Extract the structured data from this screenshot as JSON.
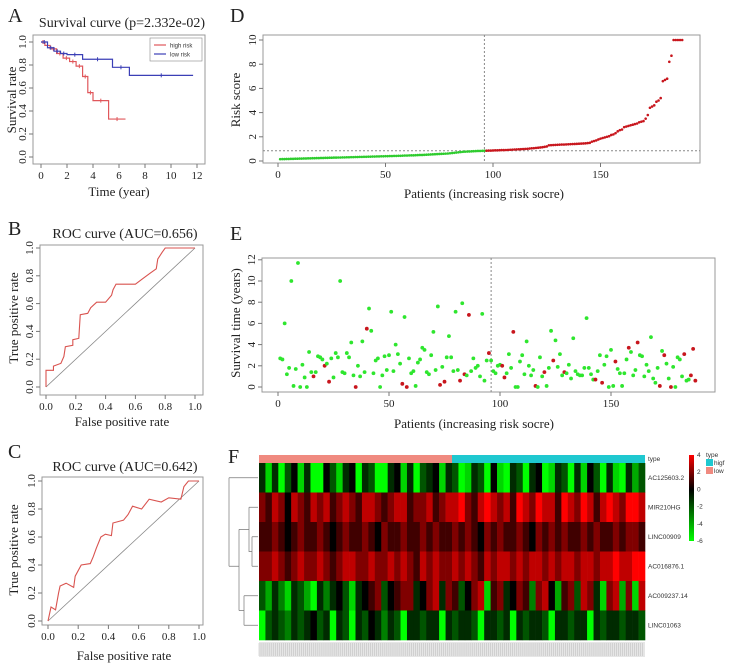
{
  "figure": {
    "labels": [
      "A",
      "B",
      "C",
      "D",
      "E",
      "F"
    ]
  },
  "chart_data": [
    {
      "id": "A",
      "type": "line",
      "title": "Survival curve (p=2.332e-02)",
      "xlabel": "Time (year)",
      "ylabel": "Survival rate",
      "xlim": [
        0,
        12
      ],
      "ylim": [
        0,
        1
      ],
      "xticks": [
        0,
        2,
        4,
        6,
        8,
        10,
        12
      ],
      "yticks": [
        0.0,
        0.2,
        0.4,
        0.6,
        0.8,
        1.0
      ],
      "legend_position": "top-right",
      "series": [
        {
          "name": "high risk",
          "color": "#e0575b",
          "x": [
            0,
            0.3,
            0.7,
            1.2,
            1.7,
            2.2,
            2.7,
            3.2,
            3.6,
            4.0,
            5.2,
            6.5
          ],
          "y": [
            1,
            0.97,
            0.94,
            0.9,
            0.86,
            0.83,
            0.79,
            0.7,
            0.56,
            0.49,
            0.33,
            0.33
          ]
        },
        {
          "name": "low risk",
          "color": "#3b3fb6",
          "x": [
            0,
            0.5,
            1.0,
            1.5,
            2.0,
            3.2,
            5.5,
            6.8,
            11.7
          ],
          "y": [
            1,
            0.95,
            0.92,
            0.9,
            0.89,
            0.85,
            0.78,
            0.71,
            0.71
          ]
        }
      ]
    },
    {
      "id": "B",
      "type": "line",
      "title": "ROC curve (AUC=0.656)",
      "xlabel": "False positive rate",
      "ylabel": "True positive rate",
      "xlim": [
        0,
        1
      ],
      "ylim": [
        0,
        1
      ],
      "xticks": [
        0.0,
        0.2,
        0.4,
        0.6,
        0.8,
        1.0
      ],
      "yticks": [
        0.0,
        0.2,
        0.4,
        0.6,
        0.8,
        1.0
      ],
      "color": "#d9534f",
      "fpr": [
        0,
        0,
        0.05,
        0.05,
        0.1,
        0.12,
        0.13,
        0.18,
        0.18,
        0.22,
        0.23,
        0.28,
        0.3,
        0.34,
        0.4,
        0.44,
        0.45,
        0.47,
        0.6,
        0.65,
        0.7,
        0.74,
        0.75,
        0.78,
        0.8,
        1
      ],
      "tpr": [
        0,
        0.12,
        0.12,
        0.15,
        0.17,
        0.22,
        0.29,
        0.3,
        0.34,
        0.35,
        0.52,
        0.53,
        0.57,
        0.61,
        0.61,
        0.66,
        0.7,
        0.74,
        0.74,
        0.78,
        0.82,
        0.85,
        0.92,
        0.97,
        1.0,
        1.0
      ]
    },
    {
      "id": "C",
      "type": "line",
      "title": "ROC curve (AUC=0.642)",
      "xlabel": "False positive rate",
      "ylabel": "True positive rate",
      "xlim": [
        0,
        1
      ],
      "ylim": [
        0,
        1
      ],
      "xticks": [
        0.0,
        0.2,
        0.4,
        0.6,
        0.8,
        1.0
      ],
      "yticks": [
        0.0,
        0.2,
        0.4,
        0.6,
        0.8,
        1.0
      ],
      "color": "#d9534f",
      "fpr": [
        0,
        0.02,
        0.05,
        0.07,
        0.08,
        0.12,
        0.17,
        0.18,
        0.22,
        0.28,
        0.3,
        0.32,
        0.35,
        0.38,
        0.42,
        0.43,
        0.5,
        0.53,
        0.56,
        0.62,
        0.67,
        0.75,
        0.8,
        0.88,
        0.9,
        0.93,
        1
      ],
      "tpr": [
        0,
        0.1,
        0.08,
        0.2,
        0.25,
        0.27,
        0.24,
        0.32,
        0.4,
        0.41,
        0.46,
        0.52,
        0.6,
        0.62,
        0.61,
        0.7,
        0.72,
        0.76,
        0.82,
        0.8,
        0.87,
        0.85,
        0.88,
        0.87,
        0.96,
        1.0,
        1.0
      ]
    },
    {
      "id": "D",
      "type": "scatter",
      "xlabel": "Patients (increasing risk socre)",
      "ylabel": "Risk score",
      "xlim": [
        0,
        190
      ],
      "ylim": [
        0,
        10
      ],
      "xticks": [
        0,
        50,
        100,
        150
      ],
      "yticks": [
        0,
        2,
        4,
        6,
        8,
        10
      ],
      "cutoff_patient": 96,
      "cutoff_score": 0.85,
      "colors": {
        "low": "#2ecc2e",
        "high": "#c8161d"
      },
      "low_risk_scores": [
        0.15,
        0.16,
        0.16,
        0.17,
        0.17,
        0.18,
        0.18,
        0.19,
        0.19,
        0.2,
        0.2,
        0.21,
        0.21,
        0.22,
        0.22,
        0.23,
        0.23,
        0.24,
        0.24,
        0.25,
        0.25,
        0.26,
        0.26,
        0.27,
        0.27,
        0.28,
        0.28,
        0.29,
        0.29,
        0.3,
        0.3,
        0.31,
        0.31,
        0.32,
        0.32,
        0.33,
        0.33,
        0.34,
        0.34,
        0.35,
        0.35,
        0.36,
        0.36,
        0.37,
        0.37,
        0.38,
        0.38,
        0.39,
        0.39,
        0.4,
        0.4,
        0.41,
        0.41,
        0.42,
        0.42,
        0.43,
        0.43,
        0.44,
        0.45,
        0.45,
        0.46,
        0.47,
        0.47,
        0.48,
        0.49,
        0.5,
        0.5,
        0.51,
        0.52,
        0.53,
        0.54,
        0.55,
        0.56,
        0.57,
        0.58,
        0.59,
        0.6,
        0.61,
        0.62,
        0.64,
        0.66,
        0.68,
        0.7,
        0.72,
        0.74,
        0.76,
        0.77,
        0.78,
        0.79,
        0.8,
        0.81,
        0.82,
        0.83,
        0.83,
        0.84,
        0.85
      ],
      "high_risk_scores": [
        0.85,
        0.86,
        0.86,
        0.87,
        0.88,
        0.88,
        0.89,
        0.9,
        0.9,
        0.91,
        0.92,
        0.93,
        0.94,
        0.95,
        0.96,
        0.97,
        0.98,
        0.99,
        1.0,
        1.01,
        1.03,
        1.05,
        1.06,
        1.08,
        1.1,
        1.12,
        1.14,
        1.17,
        1.2,
        1.3,
        1.31,
        1.32,
        1.33,
        1.34,
        1.35,
        1.36,
        1.36,
        1.37,
        1.38,
        1.39,
        1.4,
        1.41,
        1.42,
        1.43,
        1.44,
        1.45,
        1.46,
        1.48,
        1.5,
        1.6,
        1.65,
        1.7,
        1.78,
        1.85,
        1.9,
        1.95,
        2.0,
        2.05,
        2.15,
        2.2,
        2.3,
        2.45,
        2.55,
        2.6,
        2.8,
        2.85,
        2.9,
        2.95,
        3.0,
        3.05,
        3.1,
        3.2,
        3.25,
        3.3,
        3.5,
        3.8,
        4.4,
        4.5,
        4.6,
        4.9,
        5.0,
        5.2,
        6.6,
        6.7,
        6.8,
        8.2,
        8.7,
        10,
        10,
        10,
        10,
        10
      ]
    },
    {
      "id": "E",
      "type": "scatter",
      "xlabel": "Patients (increasing risk socre)",
      "ylabel": "Survival time (years)",
      "xlim": [
        0,
        190
      ],
      "ylim": [
        0,
        12
      ],
      "xticks": [
        0,
        50,
        100,
        150
      ],
      "yticks": [
        0,
        2,
        4,
        6,
        8,
        10,
        12
      ],
      "cutoff_patient": 96,
      "colors": {
        "alive": "#2ee62e",
        "dead": "#c8161d"
      },
      "survival_time": [
        2.7,
        2.6,
        6.0,
        1.2,
        1.8,
        10.0,
        0.1,
        1.7,
        11.7,
        0,
        2.1,
        0.9,
        0,
        3.3,
        1.4,
        1.0,
        1.4,
        2.9,
        2.8,
        2.6,
        2.0,
        2.2,
        0.5,
        2.7,
        0.9,
        3.2,
        2.8,
        10.0,
        1.4,
        1.3,
        3.2,
        2.8,
        4.2,
        1.1,
        0,
        2.0,
        1.0,
        4.3,
        1.4,
        5.5,
        7.4,
        5.3,
        1.3,
        2.5,
        2.7,
        0,
        1.1,
        2.9,
        1.6,
        3.0,
        7.1,
        1.5,
        4.0,
        3.1,
        2.2,
        0.3,
        6.6,
        0,
        2.7,
        1.3,
        1.5,
        0.1,
        2.3,
        2.6,
        3.7,
        3.5,
        1.4,
        1.2,
        3.0,
        5.2,
        1.6,
        7.6,
        0.2,
        1.9,
        0.5,
        2.8,
        4.8,
        2.8,
        1.5,
        7.1,
        1.6,
        0.6,
        7.9,
        1.2,
        1.1,
        6.8,
        1.5,
        2.7,
        1.8,
        2.0,
        1.0,
        6.9,
        0.6,
        2.5,
        3.2,
        2.5,
        1.5,
        1.3,
        2.0,
        2.1,
        2.0,
        0.9,
        1.3,
        3.1,
        1.8,
        5.2,
        0,
        0,
        2.4,
        3.0,
        1.2,
        4.3,
        2.0,
        1.1,
        1.6,
        0.1,
        0,
        2.8,
        1.0,
        1.4,
        0.1,
        1.8,
        5.3,
        2.5,
        4.4,
        1.9,
        3.1,
        1.1,
        1.4,
        1.3,
        2.1,
        0.8,
        4.6,
        1.5,
        1.2,
        1.1,
        1.1,
        1.8,
        6.5,
        1.8,
        1.2,
        0.7,
        0.7,
        1.5,
        3.0,
        0.4,
        2.1,
        2.9,
        0,
        3.5,
        0.1,
        2.4,
        1.7,
        1.3,
        0.1,
        1.3,
        2.6,
        3.7,
        3.3,
        1.1,
        1.6,
        4.2,
        3.0,
        2.9,
        1.0,
        2.1,
        1.5,
        4.7,
        0.8,
        0.4,
        1.8,
        0.1,
        3.4,
        3.0,
        2.2,
        0.8,
        0,
        1.9,
        0,
        2.8,
        2.6,
        1.0,
        3.1,
        0.6,
        0.7,
        1.1,
        3.6,
        0.6
      ],
      "dead_patients": [
        16,
        21,
        23,
        35,
        40,
        56,
        58,
        73,
        75,
        82,
        84,
        86,
        95,
        101,
        102,
        106,
        116,
        120,
        124,
        129,
        143,
        146,
        152,
        158,
        162,
        172,
        174,
        177,
        183,
        186,
        187,
        188
      ]
    },
    {
      "id": "F",
      "type": "heatmap",
      "annotation_title": "type",
      "groups": [
        {
          "name": "low",
          "color": "#f08a80",
          "columns": 30
        },
        {
          "name": "higf",
          "color": "#1fc8d0",
          "columns": 30
        }
      ],
      "legend_groups_order": [
        "higf",
        "low"
      ],
      "colorbar_ticks": [
        4,
        2,
        0,
        -2,
        -4,
        -6
      ],
      "color_scale": {
        "min": -6,
        "mid": 0,
        "max": 4,
        "low_color": "#00ff00",
        "mid_color": "#000000",
        "high_color": "#ff0000"
      },
      "rows": [
        "AC125603.2",
        "MIR210HG",
        "LINC00909",
        "AC016876.1",
        "AC009237.14",
        "LINC01063"
      ],
      "values": [
        [
          -1,
          -5,
          -1,
          -6,
          -2,
          0,
          -5,
          -1,
          -6,
          -6,
          0,
          -2,
          -5,
          -1,
          0,
          -6,
          -1,
          -2,
          -6,
          -6,
          -1,
          0,
          -5,
          -1,
          -6,
          -2,
          -1,
          0,
          -5,
          -1,
          -2,
          -6,
          -5,
          -1,
          -2,
          -6,
          0,
          -5,
          -6,
          -1,
          -2,
          -6,
          -1,
          0,
          -6,
          -5,
          -1,
          -2,
          -6,
          -1,
          -5,
          0,
          -2,
          -6,
          -1,
          -5,
          -6,
          -1,
          -4,
          -2
        ],
        [
          2,
          1,
          3,
          2,
          0,
          3,
          2,
          1,
          3,
          2,
          3,
          1,
          2,
          3,
          2,
          1,
          3,
          3,
          2,
          1,
          2,
          3,
          3,
          1,
          2,
          2,
          3,
          1,
          2,
          3,
          3,
          4,
          2,
          1,
          3,
          4,
          3,
          2,
          3,
          1,
          4,
          3,
          2,
          4,
          3,
          3,
          1,
          4,
          3,
          2,
          4,
          3,
          1,
          3,
          4,
          3,
          2,
          4,
          4,
          3
        ],
        [
          1,
          1,
          2,
          1,
          0,
          1,
          2,
          1,
          1,
          2,
          1,
          0,
          1,
          2,
          1,
          1,
          2,
          1,
          0,
          2,
          1,
          1,
          2,
          1,
          1,
          2,
          1,
          2,
          1,
          1,
          2,
          1,
          2,
          1,
          0,
          2,
          1,
          2,
          1,
          1,
          2,
          1,
          0,
          2,
          1,
          2,
          1,
          2,
          1,
          1,
          2,
          1,
          2,
          1,
          1,
          2,
          1,
          2,
          2,
          1
        ],
        [
          2,
          2,
          3,
          2,
          1,
          2,
          3,
          2,
          2,
          3,
          2,
          1,
          2,
          3,
          3,
          2,
          2,
          3,
          2,
          2,
          3,
          2,
          3,
          2,
          1,
          3,
          2,
          3,
          2,
          2,
          3,
          2,
          3,
          2,
          1,
          3,
          2,
          3,
          3,
          2,
          3,
          2,
          3,
          3,
          2,
          3,
          2,
          3,
          3,
          2,
          3,
          3,
          2,
          3,
          3,
          4,
          3,
          3,
          4,
          4
        ],
        [
          -2,
          -4,
          -1,
          -3,
          -5,
          -1,
          -2,
          -4,
          -6,
          -1,
          -3,
          -1,
          0,
          -2,
          -5,
          -1,
          0,
          1,
          2,
          -2,
          0,
          1,
          2,
          2,
          -1,
          0,
          2,
          3,
          -1,
          2,
          1,
          -2,
          0,
          2,
          3,
          -5,
          1,
          2,
          -1,
          0,
          2,
          1,
          -3,
          2,
          3,
          0,
          -4,
          1,
          2,
          -2,
          3,
          2,
          -1,
          -5,
          2,
          3,
          -4,
          2,
          -5,
          3
        ],
        [
          -6,
          -2,
          -1,
          -2,
          -3,
          -1,
          -2,
          -1,
          0,
          -2,
          -1,
          -6,
          -1,
          -2,
          -6,
          -1,
          -2,
          0,
          -1,
          -3,
          -1,
          -2,
          -6,
          -1,
          -1,
          -2,
          -1,
          -1,
          -6,
          -1,
          -2,
          -1,
          -1,
          -2,
          -6,
          -1,
          -1,
          -2,
          -1,
          -6,
          -1,
          -2,
          -1,
          -1,
          -2,
          -6,
          -1,
          -1,
          -2,
          -1,
          -1,
          -6,
          -1,
          -2,
          -1,
          -1,
          -2,
          -1,
          -1,
          -2
        ]
      ]
    }
  ]
}
